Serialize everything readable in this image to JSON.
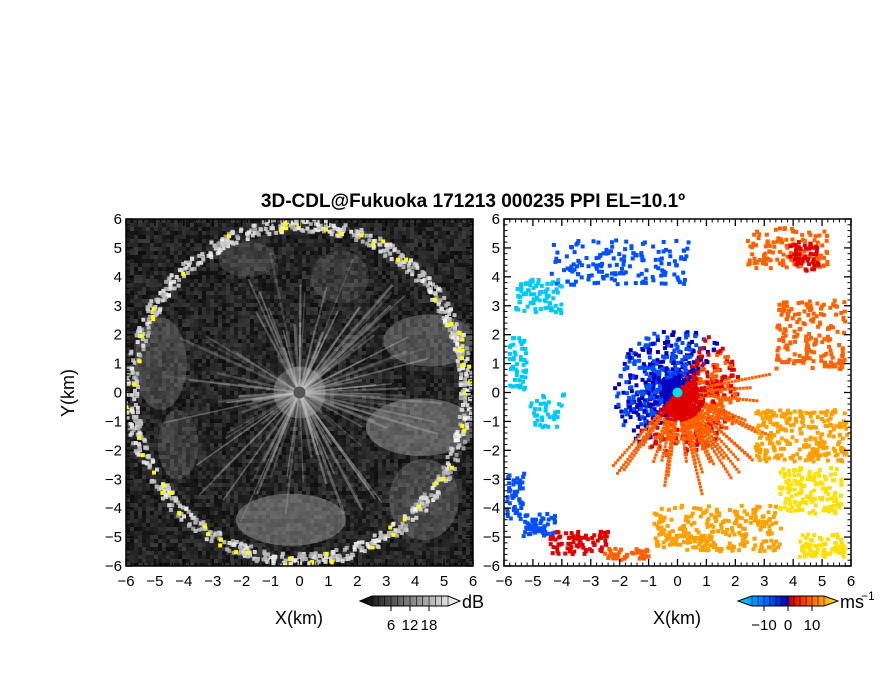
{
  "chart_data": [
    {
      "type": "heatmap",
      "panel": "left",
      "title": "3D-CDL@Fukuoka 171213 000235 PPI EL=10.1º",
      "quantity": "signal intensity",
      "xlabel": "X(km)",
      "ylabel": "Y(km)",
      "xlim": [
        -6,
        6
      ],
      "ylim": [
        -6,
        6
      ],
      "xticks": [
        "−6",
        "−5",
        "−4",
        "−3",
        "−2",
        "−1",
        "0",
        "1",
        "2",
        "3",
        "4",
        "5",
        "6"
      ],
      "yticks": [
        "−6",
        "−5",
        "−4",
        "−3",
        "−2",
        "−1",
        "0",
        "1",
        "2",
        "3",
        "4",
        "5",
        "6"
      ],
      "colormap": "grayscale",
      "colorbar": {
        "unit": "dB",
        "range": [
          0,
          24
        ],
        "ticks": [
          "6",
          "12",
          "18"
        ]
      },
      "features": {
        "range_ring_radius_km": 5.8,
        "high_echo_color": "#ffff00"
      }
    },
    {
      "type": "heatmap",
      "panel": "right",
      "quantity": "doppler velocity",
      "xlabel": "X(km)",
      "xlim": [
        -6,
        6
      ],
      "ylim": [
        -6,
        6
      ],
      "xticks": [
        "−6",
        "−5",
        "−4",
        "−3",
        "−2",
        "−1",
        "0",
        "1",
        "2",
        "3",
        "4",
        "5",
        "6"
      ],
      "yticks": [
        "−6",
        "−5",
        "−4",
        "−3",
        "−2",
        "−1",
        "0",
        "1",
        "2",
        "3",
        "4",
        "5",
        "6"
      ],
      "colormap": "cyan-blue-red-orange-yellow",
      "colorbar": {
        "unit": "ms",
        "unit_sup": "−1",
        "range": [
          -15,
          15
        ],
        "ticks": [
          "−10",
          "0",
          "10"
        ]
      },
      "colors": [
        "#00c8ff",
        "#0050ff",
        "#0000c0",
        "#e00000",
        "#ff6000",
        "#ffa000",
        "#ffe000"
      ]
    }
  ]
}
